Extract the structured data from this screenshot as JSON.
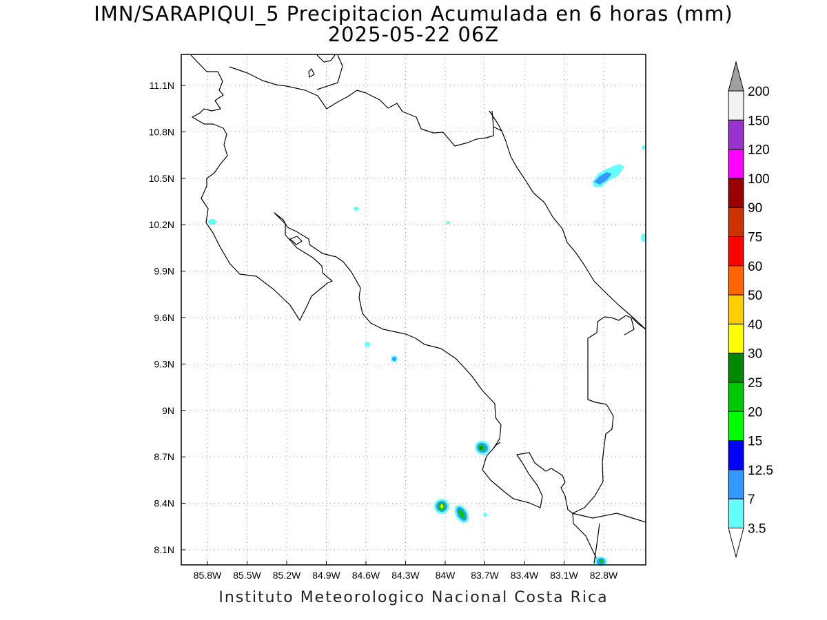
{
  "title": {
    "line1": "IMN/SARAPIQUI_5 Precipitacion Acumulada en 6 horas (mm)",
    "line2": "2025-05-22 06Z"
  },
  "footer": "Instituto Meteorologico Nacional Costa Rica",
  "map": {
    "x_ticks": [
      "85.8W",
      "85.5W",
      "85.2W",
      "84.9W",
      "84.6W",
      "84.3W",
      "84W",
      "83.7W",
      "83.4W",
      "83.1W",
      "82.8W"
    ],
    "y_ticks": [
      "11.1N",
      "10.8N",
      "10.5N",
      "10.2N",
      "9.9N",
      "9.6N",
      "9.3N",
      "9N",
      "8.7N",
      "8.4N",
      "8.1N"
    ],
    "grid": "dotted"
  },
  "colorbar": {
    "levels": [
      "200",
      "150",
      "120",
      "100",
      "90",
      "75",
      "60",
      "50",
      "40",
      "30",
      "25",
      "20",
      "15",
      "12.5",
      "7",
      "3.5"
    ],
    "colors": [
      "#f2f2f2",
      "#9a32cd",
      "#ff00ff",
      "#990000",
      "#cc3300",
      "#ff0000",
      "#ff6600",
      "#ffcc00",
      "#ffff00",
      "#008800",
      "#00c800",
      "#00ff00",
      "#0000ff",
      "#3399ff",
      "#66ffff"
    ],
    "top_arrow_color": "#a0a0a0",
    "bottom_arrow_color": "#ffffff"
  }
}
